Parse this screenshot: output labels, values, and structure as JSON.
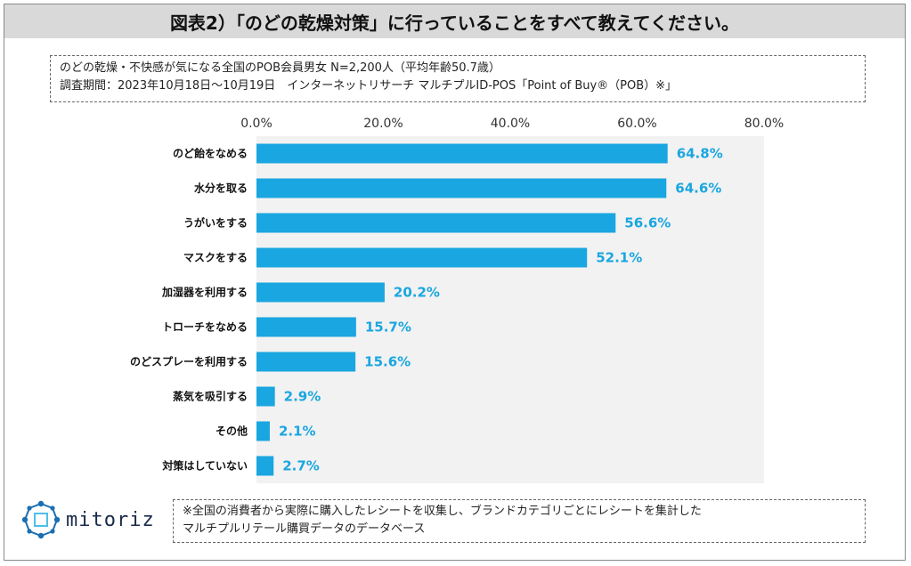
{
  "title": "図表2）「のどの乾燥対策」に行っていることをすべて教えてください。",
  "notes": {
    "line1": "のどの乾燥・不快感が気になる全国のPOB会員男女 N=2,200人（平均年齢50.7歳）",
    "line2": "調査期間：2023年10月18日～10月19日　インターネットリサーチ マルチプルID-POS「Point of Buy®（POB）※」"
  },
  "footnote": {
    "line1": "※全国の消費者から実際に購入したレシートを収集し、ブランドカテゴリごとにレシートを集計した",
    "line2": "マルチプルリテール購買データのデータベース"
  },
  "logo": {
    "text": "mitoriz"
  },
  "colors": {
    "bar": "#1aa6e0",
    "label": "#1aa6e0",
    "plot_bg": "#f2f2f2",
    "logo": "#1a6fb3"
  },
  "chart_data": {
    "type": "bar",
    "orientation": "horizontal",
    "categories": [
      "のど飴をなめる",
      "水分を取る",
      "うがいをする",
      "マスクをする",
      "加湿器を利用する",
      "トローチをなめる",
      "のどスプレーを利用する",
      "蒸気を吸引する",
      "その他",
      "対策はしていない"
    ],
    "values": [
      64.8,
      64.6,
      56.6,
      52.1,
      20.2,
      15.7,
      15.6,
      2.9,
      2.1,
      2.7
    ],
    "value_labels": [
      "64.8%",
      "64.6%",
      "56.6%",
      "52.1%",
      "20.2%",
      "15.7%",
      "15.6%",
      "2.9%",
      "2.1%",
      "2.7%"
    ],
    "x_ticks": [
      0,
      20,
      40,
      60,
      80
    ],
    "x_tick_labels": [
      "0.0%",
      "20.0%",
      "40.0%",
      "60.0%",
      "80.0%"
    ],
    "xlim": [
      0,
      80
    ],
    "axis_position": "top",
    "grid": false,
    "legend": "none"
  }
}
